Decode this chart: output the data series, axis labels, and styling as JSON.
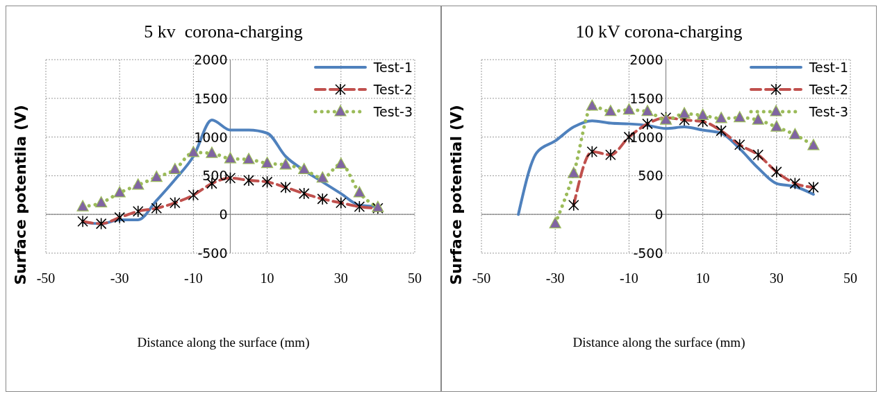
{
  "chart_data": [
    {
      "type": "line",
      "title": "5 kv  corona-charging",
      "xlabel": "Distance along the surface (mm)",
      "ylabel": "Surface potentila (V)",
      "xlim": [
        -50,
        50
      ],
      "xticks": [
        -50,
        -30,
        -10,
        10,
        30,
        50
      ],
      "ylim": [
        -500,
        2000
      ],
      "yticks": [
        -500,
        0,
        500,
        1000,
        1500,
        2000
      ],
      "grid": true,
      "legend": "top right",
      "series": [
        {
          "name": "Test-1",
          "color": "#4f81bd",
          "marker": "none",
          "line_style": "solid",
          "x": [
            -40,
            -35,
            -30,
            -25,
            -20,
            -15,
            -10,
            -5,
            0,
            5,
            10,
            15,
            20,
            25,
            30,
            35,
            40
          ],
          "values": [
            -100,
            -120,
            -70,
            -70,
            180,
            450,
            750,
            1220,
            1090,
            1090,
            1050,
            750,
            570,
            420,
            270,
            120,
            100
          ]
        },
        {
          "name": "Test-2",
          "color": "#c0504d",
          "marker": "cross",
          "line_style": "dashed",
          "x": [
            -40,
            -35,
            -30,
            -25,
            -20,
            -15,
            -10,
            -5,
            0,
            5,
            10,
            15,
            20,
            25,
            30,
            35,
            40
          ],
          "values": [
            -90,
            -120,
            -40,
            40,
            80,
            150,
            250,
            400,
            470,
            440,
            420,
            350,
            270,
            200,
            150,
            100,
            80
          ]
        },
        {
          "name": "Test-3",
          "color": "#9bbb59",
          "marker": "triangle",
          "line_style": "dotted",
          "x": [
            -40,
            -35,
            -30,
            -25,
            -20,
            -15,
            -10,
            -5,
            0,
            5,
            10,
            15,
            20,
            25,
            30,
            35,
            40
          ],
          "values": [
            100,
            150,
            280,
            380,
            480,
            580,
            800,
            790,
            720,
            710,
            660,
            640,
            580,
            470,
            650,
            280,
            90
          ]
        }
      ]
    },
    {
      "type": "line",
      "title": "10 kV corona-charging",
      "xlabel": "Distance along the surface (mm)",
      "ylabel": "Surface potential (V)",
      "xlim": [
        -50,
        50
      ],
      "xticks": [
        -50,
        -30,
        -10,
        10,
        30,
        50
      ],
      "ylim": [
        -500,
        2000
      ],
      "yticks": [
        -500,
        0,
        500,
        1000,
        1500,
        2000
      ],
      "grid": true,
      "legend": "top right",
      "series": [
        {
          "name": "Test-1",
          "color": "#4f81bd",
          "marker": "none",
          "line_style": "solid",
          "x": [
            -40,
            -35,
            -30,
            -25,
            -20,
            -15,
            -10,
            -5,
            0,
            5,
            10,
            15,
            20,
            25,
            30,
            35,
            40
          ],
          "values": [
            0,
            800,
            950,
            1130,
            1210,
            1180,
            1170,
            1150,
            1110,
            1130,
            1090,
            1050,
            850,
            600,
            400,
            360,
            260
          ]
        },
        {
          "name": "Test-2",
          "color": "#c0504d",
          "marker": "cross",
          "line_style": "dashed",
          "x": [
            -25,
            -20,
            -15,
            -10,
            -5,
            0,
            5,
            10,
            15,
            20,
            25,
            30,
            35,
            40
          ],
          "values": [
            120,
            810,
            770,
            1000,
            1170,
            1250,
            1220,
            1200,
            1080,
            900,
            770,
            550,
            400,
            350
          ]
        },
        {
          "name": "Test-3",
          "color": "#9bbb59",
          "marker": "triangle",
          "line_style": "dotted",
          "x": [
            -30,
            -25,
            -20,
            -15,
            -10,
            -5,
            0,
            5,
            10,
            15,
            20,
            25,
            30,
            35,
            40
          ],
          "values": [
            -120,
            530,
            1400,
            1330,
            1350,
            1330,
            1220,
            1300,
            1280,
            1240,
            1250,
            1220,
            1130,
            1030,
            890
          ]
        }
      ]
    }
  ]
}
